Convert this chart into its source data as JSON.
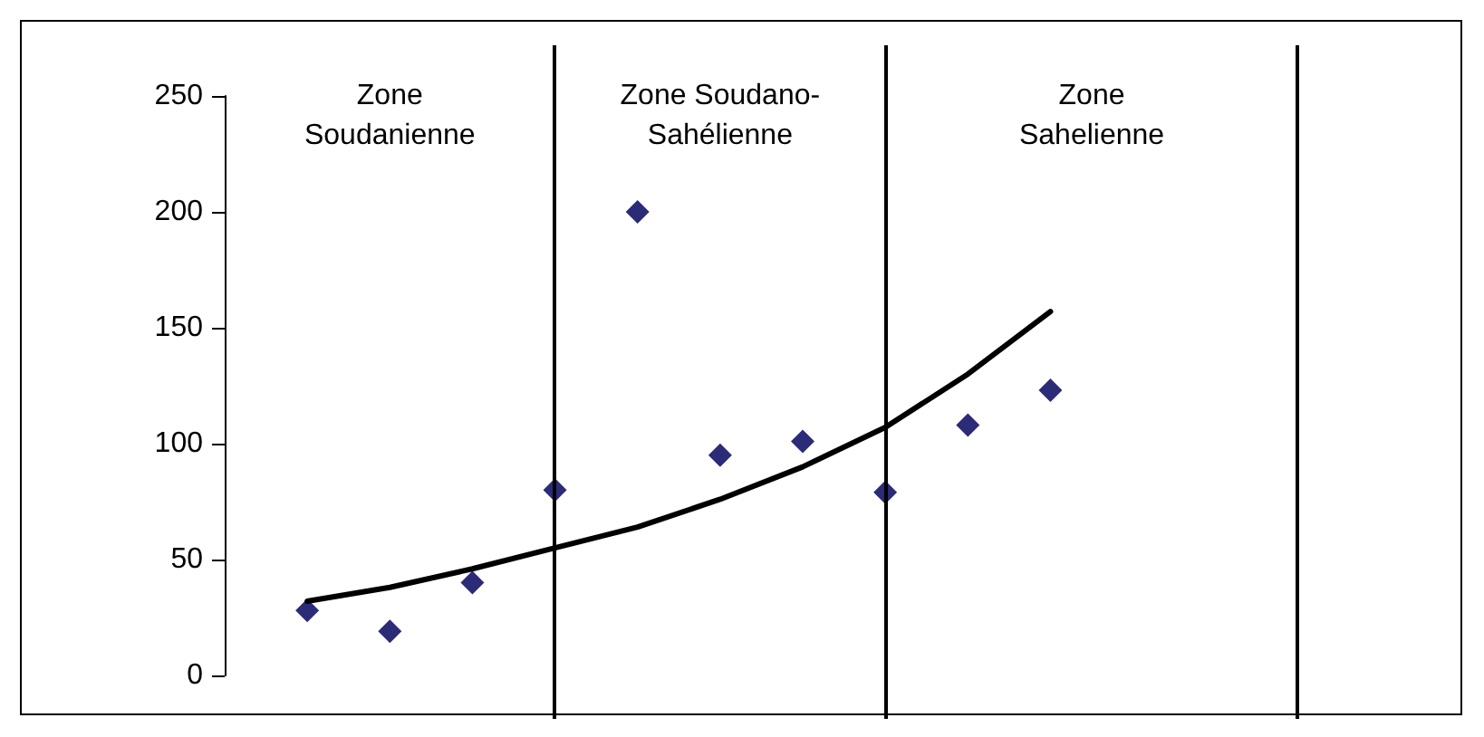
{
  "chart_data": {
    "type": "scatter",
    "categories": [
      null,
      null,
      null,
      null,
      null,
      null,
      null,
      null,
      null,
      null,
      null,
      null,
      null,
      null,
      null
    ],
    "ylim": [
      0,
      250
    ],
    "yticks": [
      0,
      50,
      100,
      150,
      200,
      250
    ],
    "annotations": [
      "Zone\nSoudanienne",
      "Zone Soudano-\nSahélienne",
      "Zone\nSahelienne"
    ],
    "series": [
      {
        "color": "#2b2b78",
        "marker": "diamond",
        "values": [
          null,
          28,
          19,
          40,
          80,
          200,
          95,
          101,
          79,
          108,
          123,
          null,
          null,
          null,
          null
        ]
      },
      {
        "type": "line",
        "color": "#000000",
        "marker": "none",
        "line_style": "solid",
        "values": [
          null,
          32,
          38,
          46,
          55,
          64,
          76,
          90,
          107,
          130,
          157,
          null,
          null,
          null,
          null
        ]
      }
    ]
  }
}
